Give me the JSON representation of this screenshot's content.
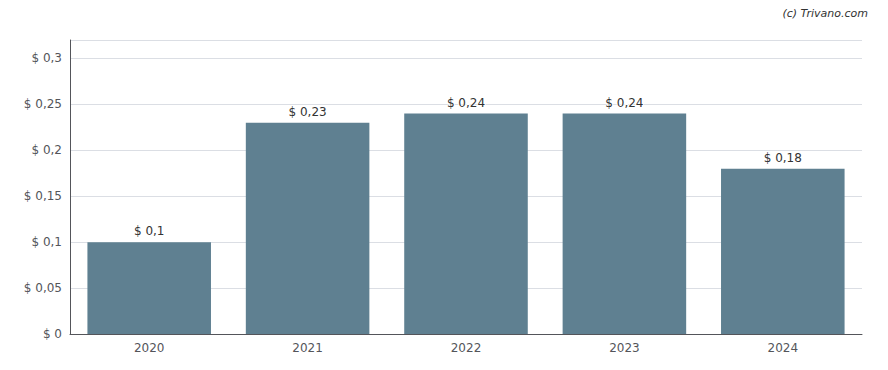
{
  "chart_data": {
    "type": "bar",
    "categories": [
      "2020",
      "2021",
      "2022",
      "2023",
      "2024"
    ],
    "values": [
      0.1,
      0.23,
      0.24,
      0.24,
      0.18
    ],
    "value_labels": [
      "$ 0,1",
      "$ 0,23",
      "$ 0,24",
      "$ 0,24",
      "$ 0,18"
    ],
    "data_labels": true,
    "color": "#5f8091",
    "ylim": [
      0,
      0.32
    ],
    "yticks": [
      {
        "value": 0,
        "label": "$ 0"
      },
      {
        "value": 0.05,
        "label": "$ 0,05"
      },
      {
        "value": 0.1,
        "label": "$ 0,1"
      },
      {
        "value": 0.15,
        "label": "$ 0,15"
      },
      {
        "value": 0.2,
        "label": "$ 0,2"
      },
      {
        "value": 0.25,
        "label": "$ 0,25"
      },
      {
        "value": 0.3,
        "label": "$ 0,3"
      }
    ],
    "grid": true,
    "annotations": [
      "(c) Trivano.com"
    ]
  }
}
